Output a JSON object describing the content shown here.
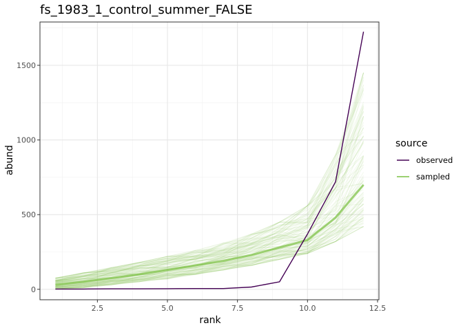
{
  "chart_data": {
    "type": "line",
    "title": "fs_1983_1_control_summer_FALSE",
    "xlabel": "rank",
    "ylabel": "abund",
    "xlim": [
      0.45,
      12.55
    ],
    "ylim": [
      -70,
      1790
    ],
    "x_ticks": [
      {
        "value": 2.5,
        "label": "2.5"
      },
      {
        "value": 5.0,
        "label": "5.0"
      },
      {
        "value": 7.5,
        "label": "7.5"
      },
      {
        "value": 10.0,
        "label": "10.0"
      },
      {
        "value": 12.5,
        "label": "12.5"
      }
    ],
    "y_ticks": [
      {
        "value": 0,
        "label": "0"
      },
      {
        "value": 500,
        "label": "500"
      },
      {
        "value": 1000,
        "label": "1000"
      },
      {
        "value": 1500,
        "label": "1500"
      }
    ],
    "grid": true,
    "legend": {
      "title": "source",
      "placement": "right",
      "entries": [
        {
          "label": "observed",
          "color": "#440154"
        },
        {
          "label": "sampled",
          "color": "#7ac142"
        }
      ]
    },
    "series": [
      {
        "name": "observed",
        "color": "#440154",
        "x": [
          1,
          2,
          3,
          4,
          5,
          6,
          7,
          8,
          9,
          10,
          11,
          12
        ],
        "y": [
          2,
          2,
          3,
          3,
          4,
          5,
          5,
          15,
          50,
          370,
          720,
          1725
        ]
      },
      {
        "name": "sampled",
        "color": "#7ac142",
        "x": [
          1,
          2,
          3,
          4,
          5,
          6,
          7,
          8,
          9,
          10,
          11,
          12
        ],
        "y_median": [
          30,
          50,
          75,
          100,
          130,
          160,
          190,
          230,
          280,
          330,
          480,
          700
        ],
        "y_low": [
          0,
          10,
          30,
          50,
          70,
          100,
          130,
          160,
          200,
          240,
          320,
          420
        ],
        "y_high": [
          75,
          110,
          145,
          180,
          220,
          260,
          310,
          370,
          450,
          560,
          900,
          1450
        ],
        "n_draws": 120
      }
    ]
  }
}
